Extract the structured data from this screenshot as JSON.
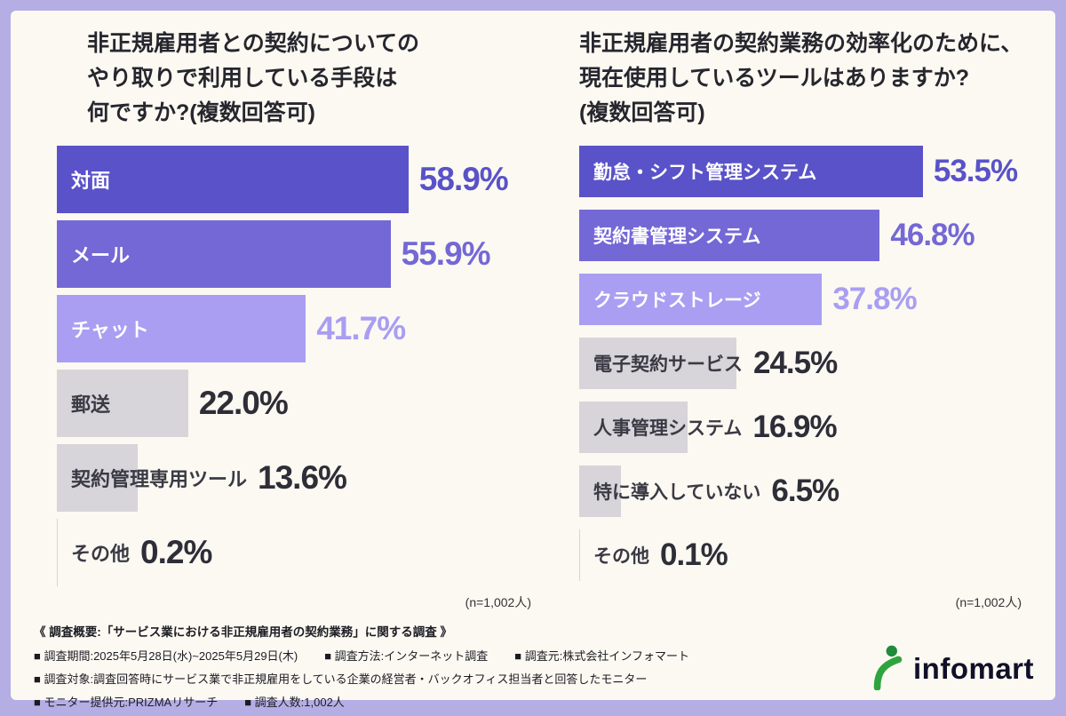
{
  "chart_data": [
    {
      "type": "bar",
      "orientation": "horizontal",
      "title": "非正規雇用者との契約についてのやり取りで利用している手段は何ですか?(複数回答可)",
      "title_lines": [
        "非正規雇用者との契約についての",
        "やり取りで利用している手段は",
        "何ですか?(複数回答可)"
      ],
      "unit": "%",
      "xlim": [
        0,
        70
      ],
      "categories": [
        "対面",
        "メール",
        "チャット",
        "郵送",
        "契約管理専用ツール",
        "その他"
      ],
      "values": [
        58.9,
        55.9,
        41.7,
        22.0,
        13.6,
        0.2
      ],
      "n_label": "(n=1,002人)",
      "bars": [
        {
          "label": "対面",
          "value": 58.9,
          "pct": "58.9%",
          "style": "dark"
        },
        {
          "label": "メール",
          "value": 55.9,
          "pct": "55.9%",
          "style": "medium"
        },
        {
          "label": "チャット",
          "value": 41.7,
          "pct": "41.7%",
          "style": "light"
        },
        {
          "label": "郵送",
          "value": 22.0,
          "pct": "22.0%",
          "style": "gray"
        },
        {
          "label": "契約管理専用ツール",
          "value": 13.6,
          "pct": "13.6%",
          "style": "gray"
        },
        {
          "label": "その他",
          "value": 0.2,
          "pct": "0.2%",
          "style": "gray"
        }
      ]
    },
    {
      "type": "bar",
      "orientation": "horizontal",
      "title": "非正規雇用者の契約業務の効率化のために、現在使用しているツールはありますか?(複数回答可)",
      "title_lines": [
        "非正規雇用者の契約業務の効率化のために、",
        "現在使用しているツールはありますか?",
        "(複数回答可)"
      ],
      "unit": "%",
      "xlim": [
        0,
        70
      ],
      "categories": [
        "勤怠・シフト管理システム",
        "契約書管理システム",
        "クラウドストレージ",
        "電子契約サービス",
        "人事管理システム",
        "特に導入していない",
        "その他"
      ],
      "values": [
        53.5,
        46.8,
        37.8,
        24.5,
        16.9,
        6.5,
        0.1
      ],
      "n_label": "(n=1,002人)",
      "bars": [
        {
          "label": "勤怠・シフト管理システム",
          "value": 53.5,
          "pct": "53.5%",
          "style": "dark"
        },
        {
          "label": "契約書管理システム",
          "value": 46.8,
          "pct": "46.8%",
          "style": "medium"
        },
        {
          "label": "クラウドストレージ",
          "value": 37.8,
          "pct": "37.8%",
          "style": "light"
        },
        {
          "label": "電子契約サービス",
          "value": 24.5,
          "pct": "24.5%",
          "style": "gray"
        },
        {
          "label": "人事管理システム",
          "value": 16.9,
          "pct": "16.9%",
          "style": "gray"
        },
        {
          "label": "特に導入していない",
          "value": 6.5,
          "pct": "6.5%",
          "style": "gray"
        },
        {
          "label": "その他",
          "value": 0.1,
          "pct": "0.1%",
          "style": "gray"
        }
      ]
    }
  ],
  "colors": {
    "frame": "#b5aee4",
    "background": "#fcf9f2",
    "bar_dark": "#5a52c8",
    "bar_medium": "#7468d6",
    "bar_light": "#a99ef2",
    "bar_gray": "#d7d4da",
    "text_dark": "#2e2e38",
    "logo_green": "#2fa43e"
  },
  "footer": {
    "heading": "《 調査概要:「サービス業における非正規雇用者の契約業務」に関する調査 》",
    "rows": [
      [
        "■ 調査期間:2025年5月28日(水)~2025年5月29日(木)",
        "■ 調査方法:インターネット調査",
        "■ 調査元:株式会社インフォマート"
      ],
      [
        "■ 調査対象:調査回答時にサービス業で非正規雇用をしている企業の経営者・バックオフィス担当者と回答したモニター"
      ],
      [
        "■ モニター提供元:PRIZMAリサーチ",
        "■ 調査人数:1,002人"
      ]
    ],
    "logo_text": "infomart"
  }
}
